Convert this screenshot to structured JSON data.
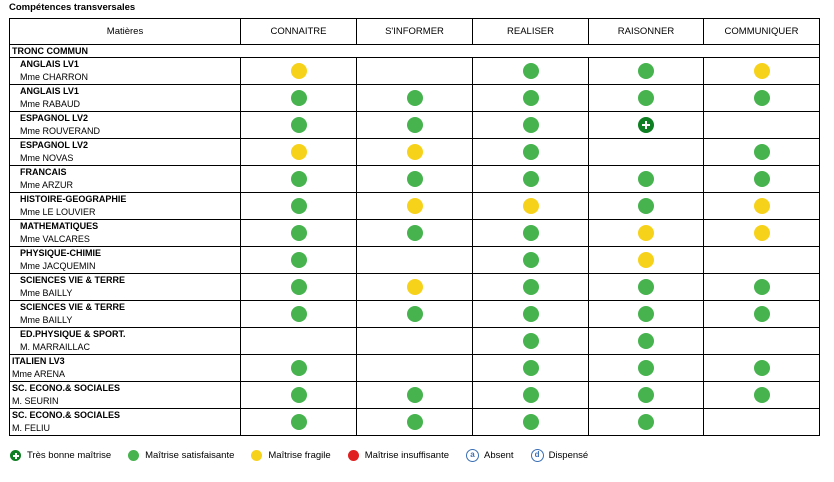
{
  "title": "Compétences transversales",
  "columns": [
    "Matières",
    "CONNAITRE",
    "S'INFORMER",
    "REALISER",
    "RAISONNER",
    "COMMUNIQUER"
  ],
  "group_tronc": "TRONC COMMUN",
  "subjects": [
    {
      "name": "ANGLAIS LV1",
      "teacher": "Mme CHARRON",
      "marks": [
        "yellow",
        "",
        "green",
        "green",
        "yellow"
      ]
    },
    {
      "name": "ANGLAIS LV1",
      "teacher": "Mme RABAUD",
      "marks": [
        "green",
        "green",
        "green",
        "green",
        "green"
      ]
    },
    {
      "name": "ESPAGNOL LV2",
      "teacher": "Mme ROUVERAND",
      "marks": [
        "green",
        "green",
        "green",
        "plus",
        ""
      ]
    },
    {
      "name": "ESPAGNOL LV2",
      "teacher": "Mme NOVAS",
      "marks": [
        "yellow",
        "yellow",
        "green",
        "",
        "green"
      ]
    },
    {
      "name": "FRANCAIS",
      "teacher": "Mme ARZUR",
      "marks": [
        "green",
        "green",
        "green",
        "green",
        "green"
      ]
    },
    {
      "name": "HISTOIRE-GEOGRAPHIE",
      "teacher": "Mme LE LOUVIER",
      "marks": [
        "green",
        "yellow",
        "yellow",
        "green",
        "yellow"
      ]
    },
    {
      "name": "MATHEMATIQUES",
      "teacher": "Mme VALCARES",
      "marks": [
        "green",
        "green",
        "green",
        "yellow",
        "yellow"
      ]
    },
    {
      "name": "PHYSIQUE-CHIMIE",
      "teacher": "Mme JACQUEMIN",
      "marks": [
        "green",
        "",
        "green",
        "yellow",
        ""
      ]
    },
    {
      "name": "SCIENCES VIE & TERRE",
      "teacher": "Mme BAILLY",
      "marks": [
        "green",
        "yellow",
        "green",
        "green",
        "green"
      ]
    },
    {
      "name": "SCIENCES VIE & TERRE",
      "teacher": "Mme BAILLY",
      "marks": [
        "green",
        "green",
        "green",
        "green",
        "green"
      ]
    },
    {
      "name": "ED.PHYSIQUE & SPORT.",
      "teacher": "M. MARRAILLAC",
      "marks": [
        "",
        "",
        "green",
        "green",
        ""
      ]
    },
    {
      "name": "ITALIEN LV3",
      "teacher": "Mme ARENA",
      "flush": true,
      "marks": [
        "green",
        "",
        "green",
        "green",
        "green"
      ]
    },
    {
      "name": "SC. ECONO.& SOCIALES",
      "teacher": "M. SEURIN",
      "flush": true,
      "marks": [
        "green",
        "green",
        "green",
        "green",
        "green"
      ]
    },
    {
      "name": "SC. ECONO.& SOCIALES",
      "teacher": "M. FELIU",
      "flush": true,
      "marks": [
        "green",
        "green",
        "green",
        "green",
        ""
      ]
    }
  ],
  "legend": {
    "tres_bonne": "Très bonne maîtrise",
    "satisfaisante": "Maîtrise satisfaisante",
    "fragile": "Maîtrise fragile",
    "insuffisante": "Maîtrise insuffisante",
    "absent": "Absent",
    "dispense": "Dispensé",
    "absent_glyph": "a",
    "dispense_glyph": "d"
  },
  "colors": {
    "green": "#46b34e",
    "dark_green": "#0e7f22",
    "yellow": "#f7d21a",
    "red": "#e02020"
  }
}
